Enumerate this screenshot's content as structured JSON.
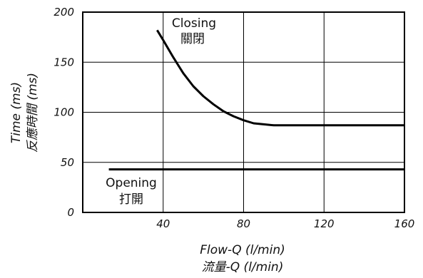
{
  "chart_data": {
    "type": "line",
    "xlim": [
      0,
      160
    ],
    "ylim": [
      0,
      200
    ],
    "x_ticks": [
      "40",
      "80",
      "120",
      "160"
    ],
    "y_ticks": [
      "0",
      "50",
      "100",
      "150",
      "200"
    ],
    "xlabel": "Flow-Q (l/min)",
    "xlabel_cn": "流量-Q (l/min)",
    "ylabel": "Time (ms)",
    "ylabel_cn": "反應時間 (ms)",
    "grid": true,
    "series": [
      {
        "name": "Closing",
        "label_cn": "關閉",
        "x": [
          37,
          40,
          45,
          50,
          55,
          60,
          65,
          70,
          75,
          80,
          85,
          90,
          95,
          100,
          120,
          140,
          160
        ],
        "y": [
          182,
          172,
          155,
          139,
          126,
          116,
          108,
          101,
          96,
          92,
          89,
          88,
          87,
          87,
          87,
          87,
          87
        ]
      },
      {
        "name": "Opening",
        "label_cn": "打開",
        "x": [
          13,
          40,
          80,
          120,
          160
        ],
        "y": [
          43,
          43,
          43,
          43,
          43
        ]
      }
    ]
  }
}
